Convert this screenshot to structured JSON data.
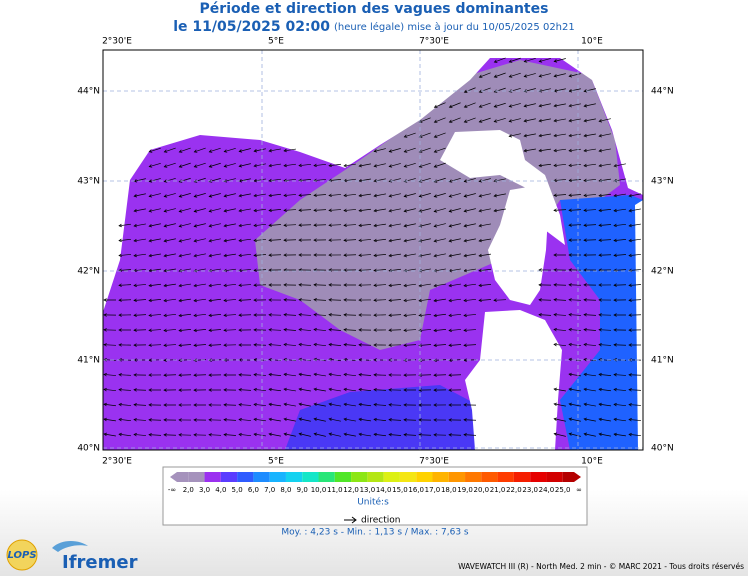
{
  "header": {
    "title": "Période et direction des vagues dominantes",
    "date": "le 11/05/2025 02:00",
    "update": "(heure légale) mise à jour du 10/05/2025 02h21"
  },
  "map": {
    "lon_labels": [
      "2°30'E",
      "5°E",
      "7°30'E",
      "10°E"
    ],
    "lat_labels": [
      "44°N",
      "43°N",
      "42°N",
      "41°N",
      "40°N"
    ]
  },
  "legend": {
    "labels": [
      "-∞",
      "2,0",
      "3,0",
      "4,0",
      "5,0",
      "6,0",
      "7,0",
      "8,0",
      "9,0",
      "10,0",
      "11,0",
      "12,0",
      "13,0",
      "14,0",
      "15,0",
      "16,0",
      "17,0",
      "18,0",
      "19,0",
      "20,0",
      "21,0",
      "22,0",
      "23,0",
      "24,0",
      "25,0",
      "∞"
    ],
    "colors": [
      "#a592bc",
      "#a592bc",
      "#9b30f0",
      "#5a3cff",
      "#2f5cff",
      "#1e8cff",
      "#18b4ff",
      "#14d2f0",
      "#14e6c8",
      "#28e678",
      "#50e628",
      "#8ce614",
      "#b4e614",
      "#dcf014",
      "#f5e614",
      "#ffd200",
      "#ffb400",
      "#ff9600",
      "#ff7800",
      "#ff5a00",
      "#ff3c00",
      "#f51e00",
      "#e60000",
      "#d20000",
      "#b40000"
    ],
    "unit": "Unité:s",
    "direction": "direction"
  },
  "stats": "Moy. : 4,23 s   -   Min. : 1,13 s / Max. : 7,63 s",
  "footer": {
    "credits": "WAVEWATCH III (R) - North Med. 2 min - © MARC 2021 - Tous droits réservés",
    "logo_lops": "LOPS",
    "logo_ifremer": "Ifremer"
  }
}
